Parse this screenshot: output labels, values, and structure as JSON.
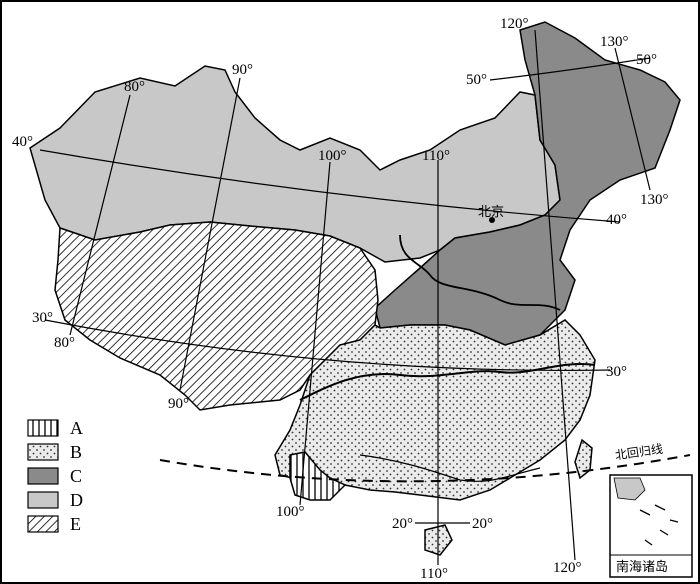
{
  "map": {
    "colors": {
      "A_fill": "#ffffff",
      "B_fill": "#ebebeb",
      "C_fill": "#8a8a8a",
      "D_fill": "#c8c8c8",
      "E_fill": "#ffffff",
      "border": "#000000"
    },
    "longitude_labels": {
      "lon80_top": "80°",
      "lon80_bottom": "80°",
      "lon90_top": "90°",
      "lon90_bottom": "90°",
      "lon100_top": "100°",
      "lon100_bottom": "100°",
      "lon110_top": "110°",
      "lon110_bottom": "110°",
      "lon120_top": "120°",
      "lon120_bottom": "120°",
      "lon130_top": "130°",
      "lon130_bottom": "130°"
    },
    "latitude_labels": {
      "lat40_left": "40°",
      "lat40_right": "40°",
      "lat30_left": "30°",
      "lat30_right": "30°",
      "lat50_left": "50°",
      "lat50_right": "50°",
      "lat20_left": "20°",
      "lat20_right": "20°"
    },
    "places": {
      "beijing": "北京",
      "tropic": "北回归线",
      "inset_title": "南海诸岛"
    },
    "legend": [
      {
        "key": "A",
        "pattern": "vertical-stripes"
      },
      {
        "key": "B",
        "pattern": "dots"
      },
      {
        "key": "C",
        "pattern": "dark-gray"
      },
      {
        "key": "D",
        "pattern": "light-gray"
      },
      {
        "key": "E",
        "pattern": "diagonal-hatch"
      }
    ]
  }
}
